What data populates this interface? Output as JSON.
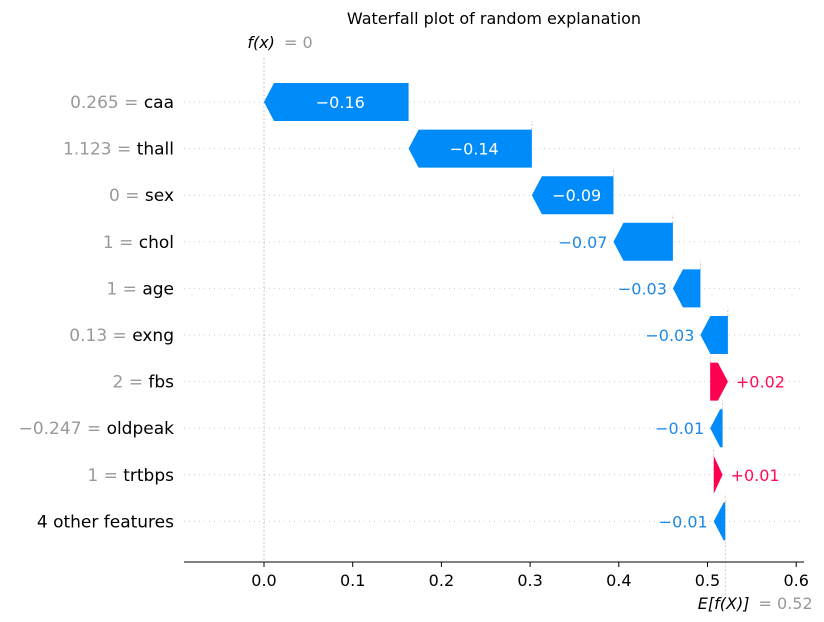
{
  "chart_data": {
    "type": "waterfall",
    "title": "Waterfall plot of random explanation",
    "base_value": 0.52,
    "final_value": 0,
    "fx_label": "f(x)",
    "fx_value_text": "= 0",
    "efx_label": "E[f(X)]",
    "efx_value_text": "= 0.52",
    "xlim": [
      -0.09,
      0.605
    ],
    "x_ticks": [
      0.0,
      0.1,
      0.2,
      0.3,
      0.4,
      0.5,
      0.6
    ],
    "x_tick_labels": [
      "0.0",
      "0.1",
      "0.2",
      "0.3",
      "0.4",
      "0.5",
      "0.6"
    ],
    "features": [
      {
        "value": "0.265",
        "name": "caa",
        "contribution": -0.163,
        "label": "−0.16"
      },
      {
        "value": "1.123",
        "name": "thall",
        "contribution": -0.139,
        "label": "−0.14"
      },
      {
        "value": "0",
        "name": "sex",
        "contribution": -0.092,
        "label": "−0.09"
      },
      {
        "value": "1",
        "name": "chol",
        "contribution": -0.067,
        "label": "−0.07"
      },
      {
        "value": "1",
        "name": "age",
        "contribution": -0.031,
        "label": "−0.03"
      },
      {
        "value": "0.13",
        "name": "exng",
        "contribution": -0.031,
        "label": "−0.03"
      },
      {
        "value": "2",
        "name": "fbs",
        "contribution": 0.02,
        "label": "+0.02"
      },
      {
        "value": "−0.247",
        "name": "oldpeak",
        "contribution": -0.014,
        "label": "−0.01"
      },
      {
        "value": "1",
        "name": "trtbps",
        "contribution": 0.01,
        "label": "+0.01"
      },
      {
        "value": "",
        "name": "4 other features",
        "contribution": -0.013,
        "label": "−0.01"
      }
    ],
    "colors": {
      "negative": "#008BFB",
      "negative_text": "#1E88E5",
      "positive": "#FF0051",
      "positive_text": "#FF0D57",
      "muted": "#999999"
    }
  }
}
